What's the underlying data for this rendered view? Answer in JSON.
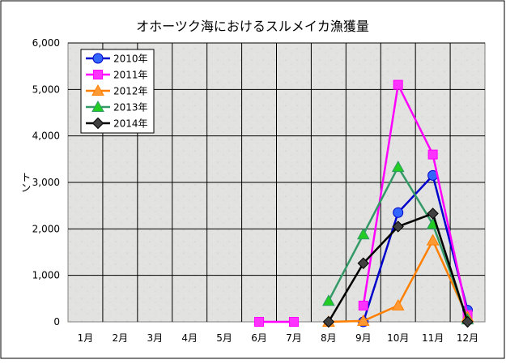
{
  "chart_data": {
    "type": "line",
    "title": "オホーツク海におけるスルメイカ漁獲量",
    "ylabel": "トン",
    "xlabel": "",
    "categories": [
      "1月",
      "2月",
      "3月",
      "4月",
      "5月",
      "6月",
      "7月",
      "8月",
      "9月",
      "10月",
      "11月",
      "12月"
    ],
    "y_ticks": [
      "0",
      "1,000",
      "2,000",
      "3,000",
      "4,000",
      "5,000",
      "6,000"
    ],
    "ylim": [
      0,
      6000
    ],
    "grid": true,
    "legend_position": "top-left",
    "series": [
      {
        "name": "2010年",
        "color": "#0000cc",
        "fill": "#3366ff",
        "marker": "circle",
        "values": [
          null,
          null,
          null,
          null,
          null,
          null,
          null,
          null,
          0,
          2350,
          3150,
          250
        ]
      },
      {
        "name": "2011年",
        "color": "#ff00ff",
        "fill": "#ff33ff",
        "marker": "square",
        "values": [
          null,
          null,
          null,
          null,
          null,
          0,
          0,
          null,
          350,
          5100,
          3600,
          150
        ]
      },
      {
        "name": "2012年",
        "color": "#ff8000",
        "fill": "#ff9933",
        "marker": "triangle",
        "values": [
          null,
          null,
          null,
          null,
          null,
          null,
          null,
          0,
          20,
          350,
          1750,
          100
        ]
      },
      {
        "name": "2013年",
        "color": "#339966",
        "fill": "#22cc22",
        "marker": "triangle",
        "values": [
          null,
          null,
          null,
          null,
          null,
          null,
          null,
          450,
          1880,
          3330,
          2100,
          50
        ]
      },
      {
        "name": "2014年",
        "color": "#000000",
        "fill": "#404040",
        "marker": "diamond",
        "values": [
          null,
          null,
          null,
          null,
          null,
          null,
          null,
          0,
          1260,
          2050,
          2330,
          0
        ]
      }
    ]
  }
}
